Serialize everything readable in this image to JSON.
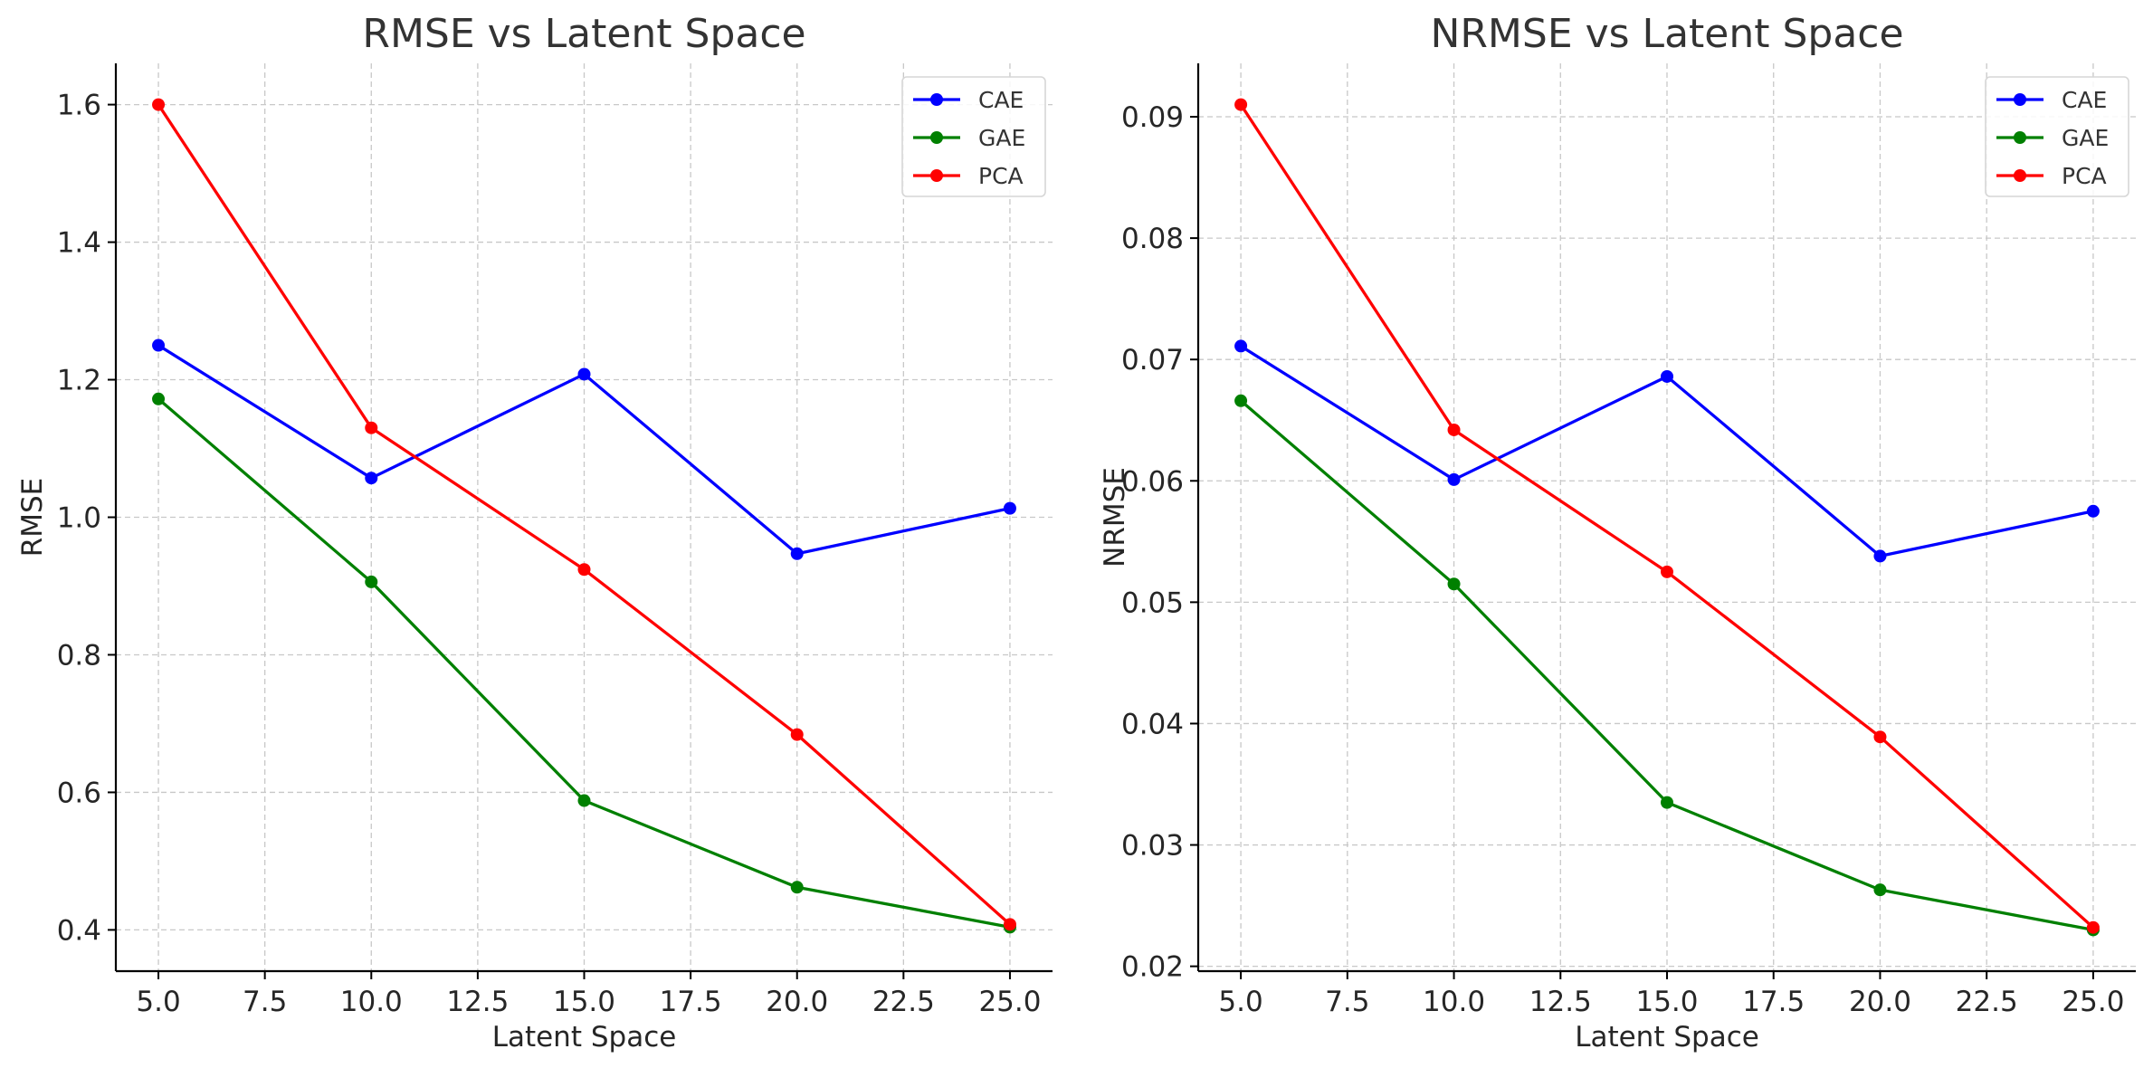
{
  "chart_data": [
    {
      "type": "line",
      "title": "RMSE vs Latent Space",
      "xlabel": "Latent Space",
      "ylabel": "RMSE",
      "x": [
        5,
        10,
        15,
        20,
        25
      ],
      "xlim": [
        4.0,
        26.0
      ],
      "ylim": [
        0.34,
        1.66
      ],
      "xticks": [
        "5.0",
        "7.5",
        "10.0",
        "12.5",
        "15.0",
        "17.5",
        "20.0",
        "22.5",
        "25.0"
      ],
      "yticks": [
        "0.4",
        "0.6",
        "0.8",
        "1.0",
        "1.2",
        "1.4",
        "1.6"
      ],
      "grid": true,
      "legend_position": "top-right",
      "series": [
        {
          "name": "CAE",
          "color": "#0000ff",
          "values": [
            1.25,
            1.057,
            1.208,
            0.947,
            1.013
          ]
        },
        {
          "name": "GAE",
          "color": "#008000",
          "values": [
            1.172,
            0.906,
            0.588,
            0.462,
            0.404
          ]
        },
        {
          "name": "PCA",
          "color": "#ff0000",
          "values": [
            1.6,
            1.13,
            0.924,
            0.684,
            0.408
          ]
        }
      ]
    },
    {
      "type": "line",
      "title": "NRMSE vs Latent Space",
      "xlabel": "Latent Space",
      "ylabel": "NRMSE",
      "x": [
        5,
        10,
        15,
        20,
        25
      ],
      "xlim": [
        4.0,
        26.0
      ],
      "ylim": [
        0.0196,
        0.0944
      ],
      "xticks": [
        "5.0",
        "7.5",
        "10.0",
        "12.5",
        "15.0",
        "17.5",
        "20.0",
        "22.5",
        "25.0"
      ],
      "yticks": [
        "0.02",
        "0.03",
        "0.04",
        "0.05",
        "0.06",
        "0.07",
        "0.08",
        "0.09"
      ],
      "grid": true,
      "legend_position": "top-right",
      "series": [
        {
          "name": "CAE",
          "color": "#0000ff",
          "values": [
            0.0711,
            0.0601,
            0.0686,
            0.0538,
            0.0575
          ]
        },
        {
          "name": "GAE",
          "color": "#008000",
          "values": [
            0.0666,
            0.0515,
            0.0335,
            0.0263,
            0.023
          ]
        },
        {
          "name": "PCA",
          "color": "#ff0000",
          "values": [
            0.091,
            0.0642,
            0.0525,
            0.0389,
            0.0232
          ]
        }
      ]
    }
  ]
}
